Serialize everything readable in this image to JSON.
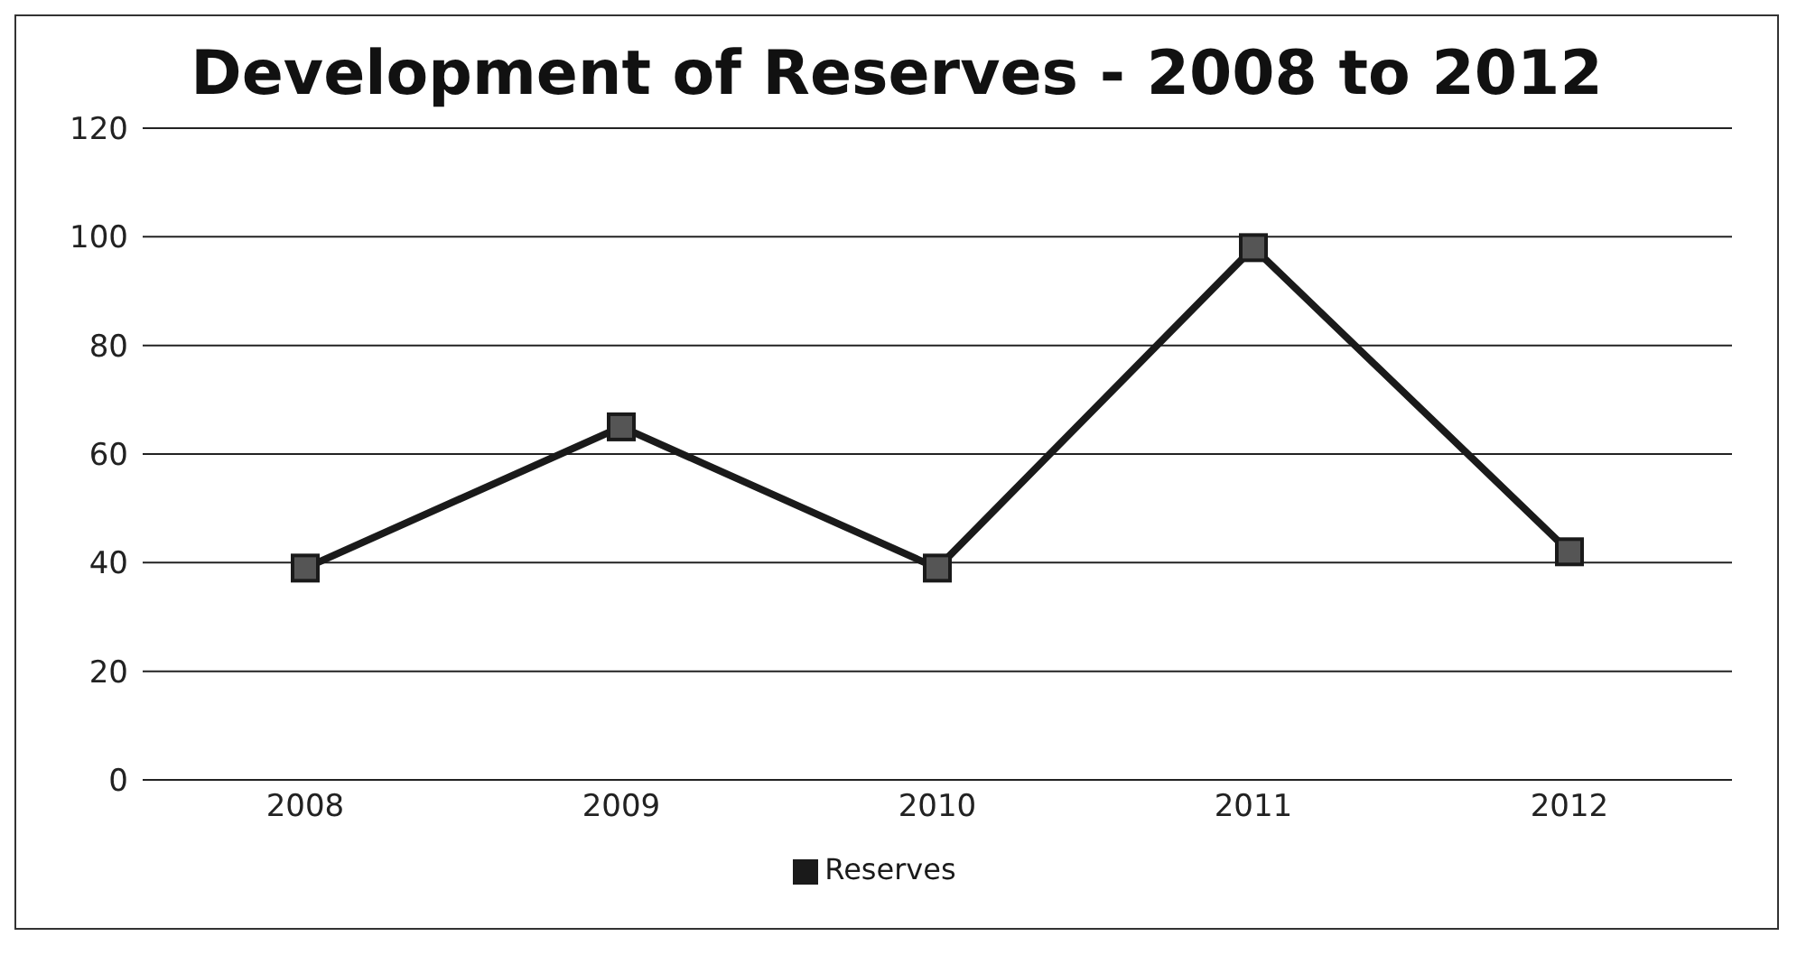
{
  "chart_data": {
    "type": "line",
    "title": "Development of Reserves - 2008 to 2012",
    "categories": [
      "2008",
      "2009",
      "2010",
      "2011",
      "2012"
    ],
    "series": [
      {
        "name": "Reserves",
        "color": "#1a1a1a",
        "values": [
          39,
          65,
          39,
          98,
          42
        ]
      }
    ],
    "ylim": [
      0,
      120
    ],
    "yticks": [
      0,
      20,
      40,
      60,
      80,
      100,
      120
    ],
    "grid": "y",
    "legend": "bottom",
    "marker": "square",
    "line_style": "solid"
  }
}
